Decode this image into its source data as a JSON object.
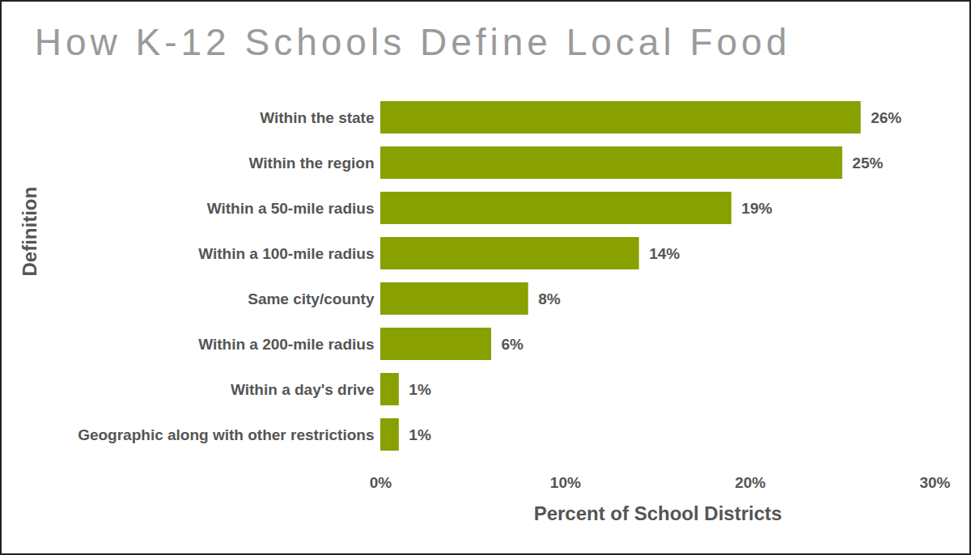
{
  "chart_data": {
    "type": "bar",
    "orientation": "horizontal",
    "title": "How K-12 Schools Define Local Food",
    "x_label": "Percent of School Districts",
    "y_label": "Definition",
    "categories": [
      "Within the state",
      "Within the region",
      "Within a 50-mile radius",
      "Within a 100-mile radius",
      "Same city/county",
      "Within a 200-mile radius",
      "Within a day's drive",
      "Geographic along with other restrictions"
    ],
    "values": [
      26,
      25,
      19,
      14,
      8,
      6,
      1,
      1
    ],
    "value_labels": [
      "26%",
      "25%",
      "19%",
      "14%",
      "8%",
      "6%",
      "1%",
      "1%"
    ],
    "color": "#88a000",
    "xlim": [
      0,
      30
    ],
    "xticks": [
      {
        "value": 0,
        "label": "0%"
      },
      {
        "value": 10,
        "label": "10%"
      },
      {
        "value": 20,
        "label": "20%"
      },
      {
        "value": 30,
        "label": "30%"
      }
    ],
    "grid": false,
    "data_labels": true
  }
}
